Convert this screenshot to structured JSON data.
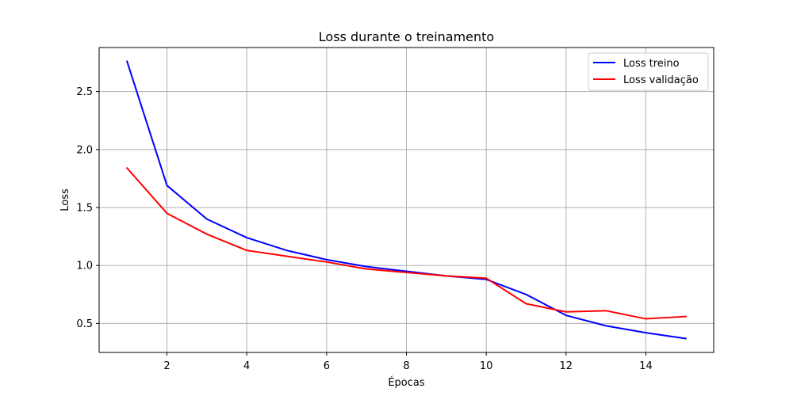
{
  "chart_data": {
    "type": "line",
    "title": "Loss durante o treinamento",
    "xlabel": "Épocas",
    "ylabel": "Loss",
    "xlim": [
      0.3,
      15.7
    ],
    "ylim": [
      0.25,
      2.88
    ],
    "xticks": [
      2,
      4,
      6,
      8,
      10,
      12,
      14
    ],
    "yticks": [
      0.5,
      1.0,
      1.5,
      2.0,
      2.5
    ],
    "ytick_labels": [
      "0.5",
      "1.0",
      "1.5",
      "2.0",
      "2.5"
    ],
    "grid": true,
    "legend_position": "top-right",
    "x": [
      1,
      2,
      3,
      4,
      5,
      6,
      7,
      8,
      9,
      10,
      11,
      12,
      13,
      14,
      15
    ],
    "series": [
      {
        "name": "Loss treino",
        "color": "#0000ff",
        "values": [
          2.76,
          1.69,
          1.4,
          1.24,
          1.13,
          1.05,
          0.99,
          0.95,
          0.91,
          0.88,
          0.75,
          0.57,
          0.48,
          0.42,
          0.37
        ]
      },
      {
        "name": "Loss validação",
        "color": "#ff0000",
        "values": [
          1.84,
          1.45,
          1.27,
          1.13,
          1.08,
          1.03,
          0.97,
          0.94,
          0.91,
          0.89,
          0.67,
          0.6,
          0.61,
          0.54,
          0.56
        ]
      }
    ]
  }
}
